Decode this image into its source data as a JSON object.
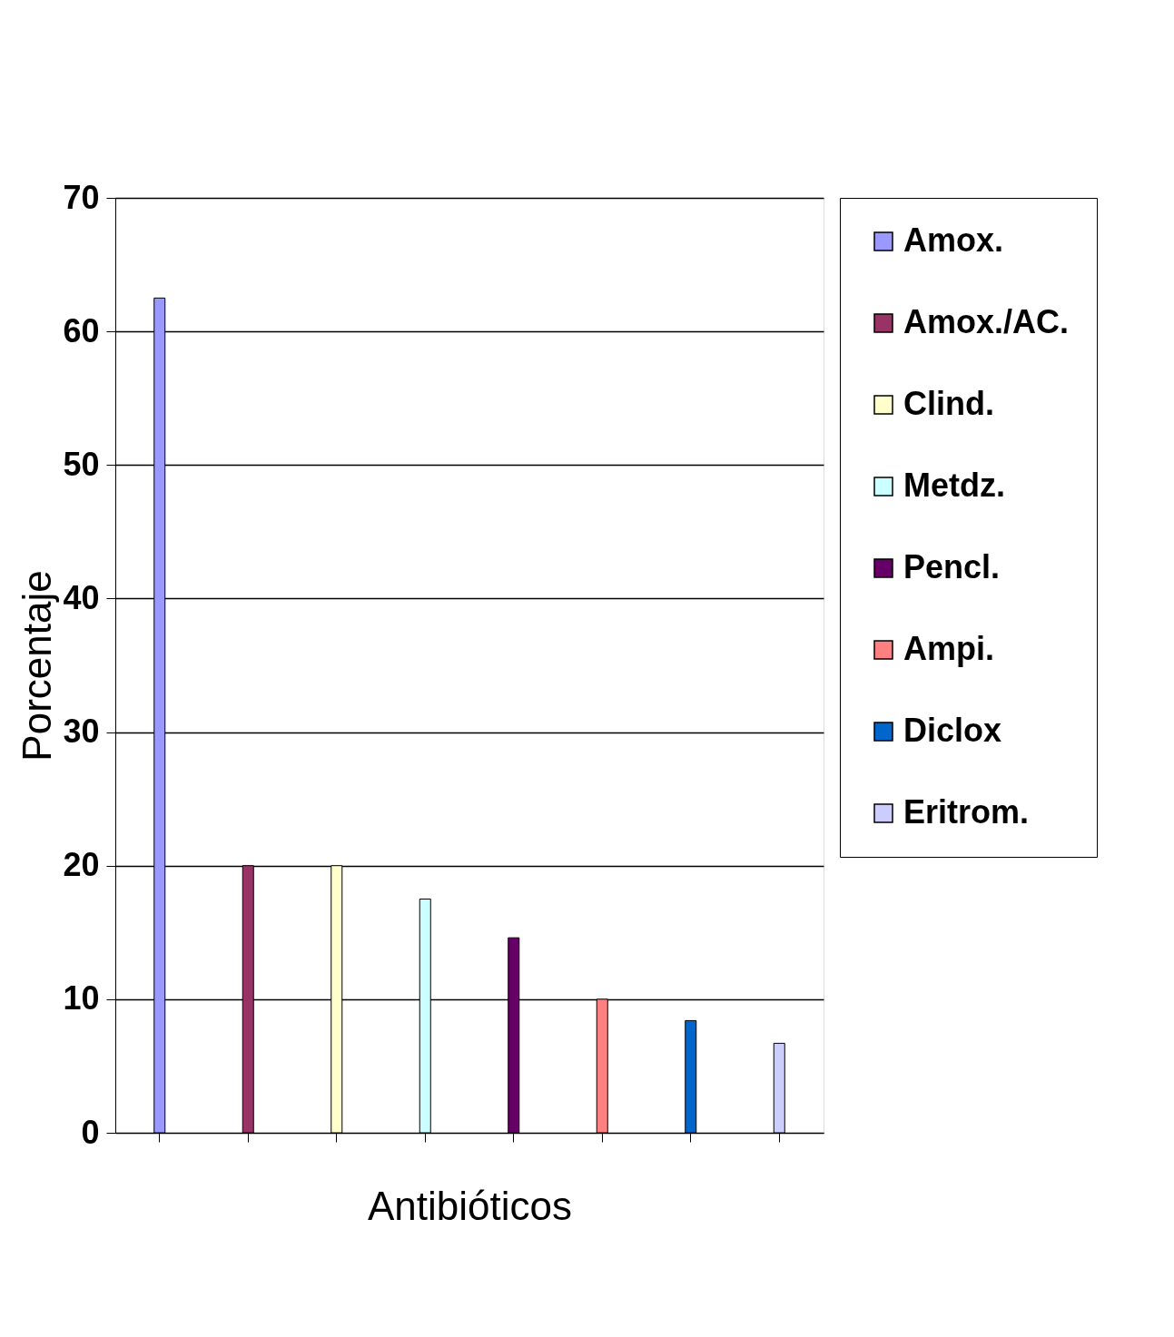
{
  "chart_data": {
    "type": "bar",
    "xlabel": "Antibióticos",
    "ylabel": "Porcentaje",
    "categories": [
      null,
      null,
      null,
      null,
      null,
      null,
      null,
      null
    ],
    "series": [
      {
        "name": "Amox.",
        "color": "#9999ff",
        "values": [
          62.5,
          null,
          null,
          null,
          null,
          null,
          null,
          null
        ]
      },
      {
        "name": "Amox./AC.",
        "color": "#993366",
        "values": [
          null,
          20,
          null,
          null,
          null,
          null,
          null,
          null
        ]
      },
      {
        "name": "Clind.",
        "color": "#ffffcc",
        "values": [
          null,
          null,
          20,
          null,
          null,
          null,
          null,
          null
        ]
      },
      {
        "name": "Metdz.",
        "color": "#ccffff",
        "values": [
          null,
          null,
          null,
          17.5,
          null,
          null,
          null,
          null
        ]
      },
      {
        "name": "Pencl.",
        "color": "#660066",
        "values": [
          null,
          null,
          null,
          null,
          14.6,
          null,
          null,
          null
        ]
      },
      {
        "name": "Ampi.",
        "color": "#ff8080",
        "values": [
          null,
          null,
          null,
          null,
          null,
          10,
          null,
          null
        ]
      },
      {
        "name": "Diclox",
        "color": "#0066cc",
        "values": [
          null,
          null,
          null,
          null,
          null,
          null,
          8.4,
          null
        ]
      },
      {
        "name": "Eritrom.",
        "color": "#ccccff",
        "values": [
          null,
          null,
          null,
          null,
          null,
          null,
          null,
          6.7
        ]
      }
    ],
    "ylim": [
      0,
      70
    ],
    "yticks": [
      0,
      10,
      20,
      30,
      40,
      50,
      60,
      70
    ],
    "grid": "y",
    "legend": "right",
    "tick_labels": "y"
  }
}
